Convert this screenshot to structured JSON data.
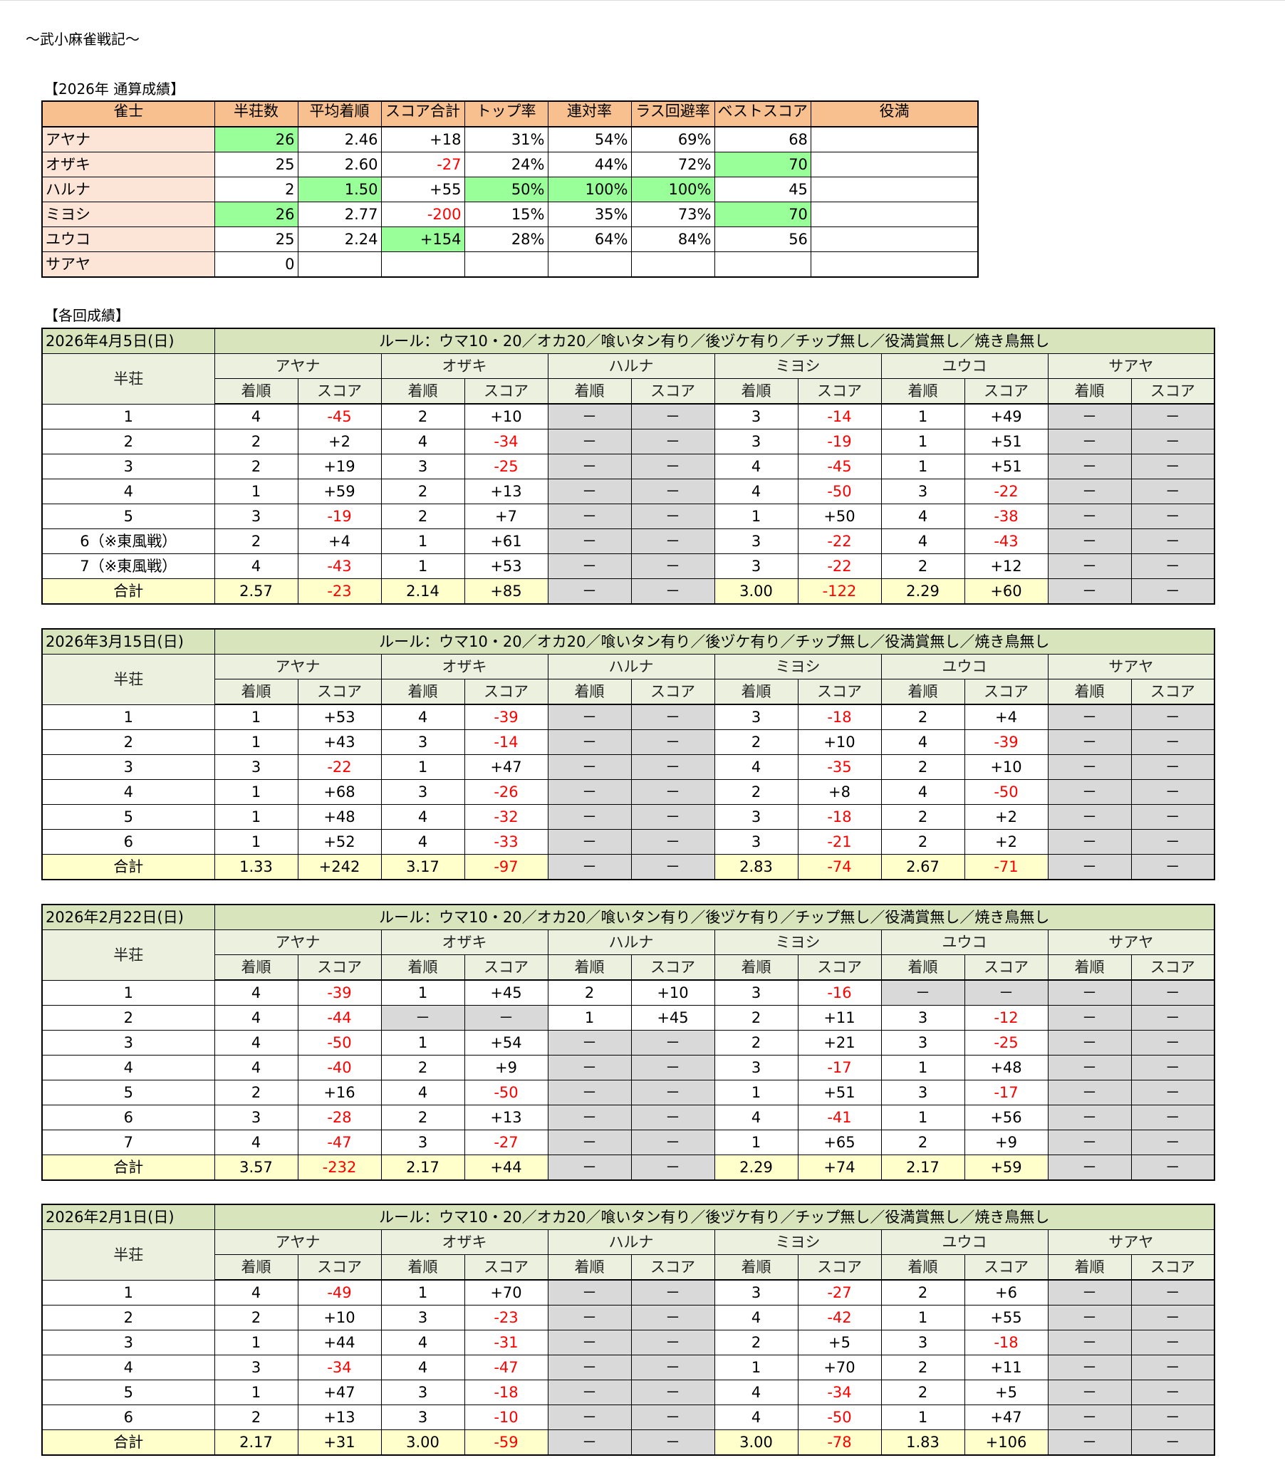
{
  "title": "～武小麻雀戦記～",
  "summary": {
    "label": "【2026年 通算成績】",
    "headers": [
      "雀士",
      "半荘数",
      "平均着順",
      "スコア合計",
      "トップ率",
      "連対率",
      "ラス回避率",
      "ベストスコア",
      "役満"
    ],
    "rows": [
      {
        "name": "アヤナ",
        "values": [
          "26",
          "2.46",
          "+18",
          "31%",
          "54%",
          "69%",
          "68",
          ""
        ],
        "highlight": [
          0
        ]
      },
      {
        "name": "オザキ",
        "values": [
          "25",
          "2.60",
          "-27",
          "24%",
          "44%",
          "72%",
          "70",
          ""
        ],
        "highlight": [
          6
        ]
      },
      {
        "name": "ハルナ",
        "values": [
          "2",
          "1.50",
          "+55",
          "50%",
          "100%",
          "100%",
          "45",
          ""
        ],
        "highlight": [
          1,
          3,
          4,
          5
        ]
      },
      {
        "name": "ミヨシ",
        "values": [
          "26",
          "2.77",
          "-200",
          "15%",
          "35%",
          "73%",
          "70",
          ""
        ],
        "highlight": [
          0,
          6
        ]
      },
      {
        "name": "ユウコ",
        "values": [
          "25",
          "2.24",
          "+154",
          "28%",
          "64%",
          "84%",
          "56",
          ""
        ],
        "highlight": [
          2
        ]
      },
      {
        "name": "サアヤ",
        "values": [
          "0",
          "",
          "",
          "",
          "",
          "",
          "",
          ""
        ],
        "highlight": []
      }
    ]
  },
  "sessions_label": "【各回成績】",
  "colors": {
    "header": "#f8c08e",
    "name_bg": "#fce4d6",
    "best": "#99ff99",
    "negative": "#ff0000",
    "session_header": "#d8e4bc",
    "sub_header": "#ebf1de",
    "total": "#ffffcc",
    "absent": "#d9d9d9"
  },
  "hanchan_label": "半荘",
  "rank_label": "着順",
  "score_label": "スコア",
  "total_label": "合計",
  "players": [
    "アヤナ",
    "オザキ",
    "ハルナ",
    "ミヨシ",
    "ユウコ",
    "サアヤ"
  ],
  "sessions": [
    {
      "date": "2026年4月5日(日)",
      "rule": "ルール：ウマ10・20／オカ20／喰いタン有り／後ヅケ有り／チップ無し／役満賞無し／焼き鳥無し",
      "rows": [
        {
          "label": "1",
          "cells": [
            "4",
            "-45",
            "2",
            "+10",
            "－",
            "－",
            "3",
            "-14",
            "1",
            "+49",
            "－",
            "－"
          ]
        },
        {
          "label": "2",
          "cells": [
            "2",
            "+2",
            "4",
            "-34",
            "－",
            "－",
            "3",
            "-19",
            "1",
            "+51",
            "－",
            "－"
          ]
        },
        {
          "label": "3",
          "cells": [
            "2",
            "+19",
            "3",
            "-25",
            "－",
            "－",
            "4",
            "-45",
            "1",
            "+51",
            "－",
            "－"
          ]
        },
        {
          "label": "4",
          "cells": [
            "1",
            "+59",
            "2",
            "+13",
            "－",
            "－",
            "4",
            "-50",
            "3",
            "-22",
            "－",
            "－"
          ]
        },
        {
          "label": "5",
          "cells": [
            "3",
            "-19",
            "2",
            "+7",
            "－",
            "－",
            "1",
            "+50",
            "4",
            "-38",
            "－",
            "－"
          ]
        },
        {
          "label": "6（※東風戦）",
          "cells": [
            "2",
            "+4",
            "1",
            "+61",
            "－",
            "－",
            "3",
            "-22",
            "4",
            "-43",
            "－",
            "－"
          ]
        },
        {
          "label": "7（※東風戦）",
          "cells": [
            "4",
            "-43",
            "1",
            "+53",
            "－",
            "－",
            "3",
            "-22",
            "2",
            "+12",
            "－",
            "－"
          ]
        }
      ],
      "total": [
        "2.57",
        "-23",
        "2.14",
        "+85",
        "－",
        "－",
        "3.00",
        "-122",
        "2.29",
        "+60",
        "－",
        "－"
      ]
    },
    {
      "date": "2026年3月15日(日)",
      "rule": "ルール：ウマ10・20／オカ20／喰いタン有り／後ヅケ有り／チップ無し／役満賞無し／焼き鳥無し",
      "rows": [
        {
          "label": "1",
          "cells": [
            "1",
            "+53",
            "4",
            "-39",
            "－",
            "－",
            "3",
            "-18",
            "2",
            "+4",
            "－",
            "－"
          ]
        },
        {
          "label": "2",
          "cells": [
            "1",
            "+43",
            "3",
            "-14",
            "－",
            "－",
            "2",
            "+10",
            "4",
            "-39",
            "－",
            "－"
          ]
        },
        {
          "label": "3",
          "cells": [
            "3",
            "-22",
            "1",
            "+47",
            "－",
            "－",
            "4",
            "-35",
            "2",
            "+10",
            "－",
            "－"
          ]
        },
        {
          "label": "4",
          "cells": [
            "1",
            "+68",
            "3",
            "-26",
            "－",
            "－",
            "2",
            "+8",
            "4",
            "-50",
            "－",
            "－"
          ]
        },
        {
          "label": "5",
          "cells": [
            "1",
            "+48",
            "4",
            "-32",
            "－",
            "－",
            "3",
            "-18",
            "2",
            "+2",
            "－",
            "－"
          ]
        },
        {
          "label": "6",
          "cells": [
            "1",
            "+52",
            "4",
            "-33",
            "－",
            "－",
            "3",
            "-21",
            "2",
            "+2",
            "－",
            "－"
          ]
        }
      ],
      "total": [
        "1.33",
        "+242",
        "3.17",
        "-97",
        "－",
        "－",
        "2.83",
        "-74",
        "2.67",
        "-71",
        "－",
        "－"
      ]
    },
    {
      "date": "2026年2月22日(日)",
      "rule": "ルール：ウマ10・20／オカ20／喰いタン有り／後ヅケ有り／チップ無し／役満賞無し／焼き鳥無し",
      "rows": [
        {
          "label": "1",
          "cells": [
            "4",
            "-39",
            "1",
            "+45",
            "2",
            "+10",
            "3",
            "-16",
            "－",
            "－",
            "－",
            "－"
          ]
        },
        {
          "label": "2",
          "cells": [
            "4",
            "-44",
            "－",
            "－",
            "1",
            "+45",
            "2",
            "+11",
            "3",
            "-12",
            "－",
            "－"
          ]
        },
        {
          "label": "3",
          "cells": [
            "4",
            "-50",
            "1",
            "+54",
            "－",
            "－",
            "2",
            "+21",
            "3",
            "-25",
            "－",
            "－"
          ]
        },
        {
          "label": "4",
          "cells": [
            "4",
            "-40",
            "2",
            "+9",
            "－",
            "－",
            "3",
            "-17",
            "1",
            "+48",
            "－",
            "－"
          ]
        },
        {
          "label": "5",
          "cells": [
            "2",
            "+16",
            "4",
            "-50",
            "－",
            "－",
            "1",
            "+51",
            "3",
            "-17",
            "－",
            "－"
          ]
        },
        {
          "label": "6",
          "cells": [
            "3",
            "-28",
            "2",
            "+13",
            "－",
            "－",
            "4",
            "-41",
            "1",
            "+56",
            "－",
            "－"
          ]
        },
        {
          "label": "7",
          "cells": [
            "4",
            "-47",
            "3",
            "-27",
            "－",
            "－",
            "1",
            "+65",
            "2",
            "+9",
            "－",
            "－"
          ]
        }
      ],
      "total": [
        "3.57",
        "-232",
        "2.17",
        "+44",
        "－",
        "－",
        "2.29",
        "+74",
        "2.17",
        "+59",
        "－",
        "－"
      ]
    },
    {
      "date": "2026年2月1日(日)",
      "rule": "ルール：ウマ10・20／オカ20／喰いタン有り／後ヅケ有り／チップ無し／役満賞無し／焼き鳥無し",
      "rows": [
        {
          "label": "1",
          "cells": [
            "4",
            "-49",
            "1",
            "+70",
            "－",
            "－",
            "3",
            "-27",
            "2",
            "+6",
            "－",
            "－"
          ]
        },
        {
          "label": "2",
          "cells": [
            "2",
            "+10",
            "3",
            "-23",
            "－",
            "－",
            "4",
            "-42",
            "1",
            "+55",
            "－",
            "－"
          ]
        },
        {
          "label": "3",
          "cells": [
            "1",
            "+44",
            "4",
            "-31",
            "－",
            "－",
            "2",
            "+5",
            "3",
            "-18",
            "－",
            "－"
          ]
        },
        {
          "label": "4",
          "cells": [
            "3",
            "-34",
            "4",
            "-47",
            "－",
            "－",
            "1",
            "+70",
            "2",
            "+11",
            "－",
            "－"
          ]
        },
        {
          "label": "5",
          "cells": [
            "1",
            "+47",
            "3",
            "-18",
            "－",
            "－",
            "4",
            "-34",
            "2",
            "+5",
            "－",
            "－"
          ]
        },
        {
          "label": "6",
          "cells": [
            "2",
            "+13",
            "3",
            "-10",
            "－",
            "－",
            "4",
            "-50",
            "1",
            "+47",
            "－",
            "－"
          ]
        }
      ],
      "total": [
        "2.17",
        "+31",
        "3.00",
        "-59",
        "－",
        "－",
        "3.00",
        "-78",
        "1.83",
        "+106",
        "－",
        "－"
      ]
    }
  ]
}
